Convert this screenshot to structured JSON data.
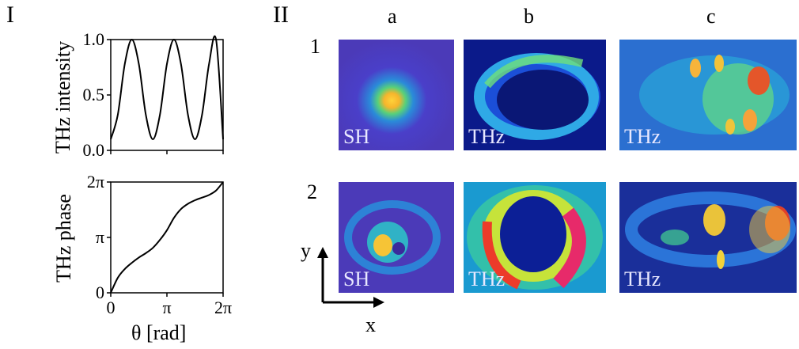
{
  "panels": {
    "left": "I",
    "right": "II"
  },
  "columns": [
    "a",
    "b",
    "c"
  ],
  "rows": [
    "1",
    "2"
  ],
  "image_tags": {
    "r1": [
      "SH",
      "THz",
      "THz"
    ],
    "r2": [
      "SH",
      "THz",
      "THz"
    ]
  },
  "axes_labels": {
    "x": "x",
    "y": "y"
  },
  "chart_data": [
    {
      "type": "line",
      "title": "",
      "xlabel": "",
      "ylabel": "THz intensity",
      "x_range_rad": [
        0,
        6.2832
      ],
      "ylim": [
        0,
        1.0
      ],
      "yticks": [
        "0.0",
        "0.5",
        "1.0"
      ],
      "series": [
        {
          "x": [
            0,
            0.3927,
            0.7854,
            1.1781,
            1.5708,
            1.9635,
            2.3562,
            2.7489,
            3.1416,
            3.5343,
            3.927,
            4.3197,
            4.7124,
            5.1051,
            5.4978,
            5.8905,
            6.2832
          ],
          "values": [
            0.1,
            0.32,
            0.78,
            1.0,
            0.78,
            0.32,
            0.1,
            0.32,
            0.78,
            1.0,
            0.78,
            0.32,
            0.1,
            0.32,
            0.78,
            1.0,
            0.1
          ]
        }
      ]
    },
    {
      "type": "line",
      "title": "",
      "xlabel": "θ [rad]",
      "ylabel": "THz phase",
      "ylim": [
        0,
        6.2832
      ],
      "yticks": [
        "0",
        "π",
        "2π"
      ],
      "xticks": [
        "0",
        "π",
        "2π"
      ],
      "series": [
        {
          "x": [
            0,
            0.3927,
            0.7854,
            1.1781,
            1.5708,
            1.9635,
            2.3562,
            2.7489,
            3.1416,
            3.5343,
            3.927,
            4.3197,
            4.7124,
            5.1051,
            5.4978,
            5.8905,
            6.2832
          ],
          "values": [
            0,
            0.85,
            1.35,
            1.7,
            2.0,
            2.25,
            2.55,
            3.0,
            3.55,
            4.25,
            4.75,
            5.05,
            5.25,
            5.4,
            5.55,
            5.8,
            6.2832
          ]
        }
      ]
    }
  ]
}
